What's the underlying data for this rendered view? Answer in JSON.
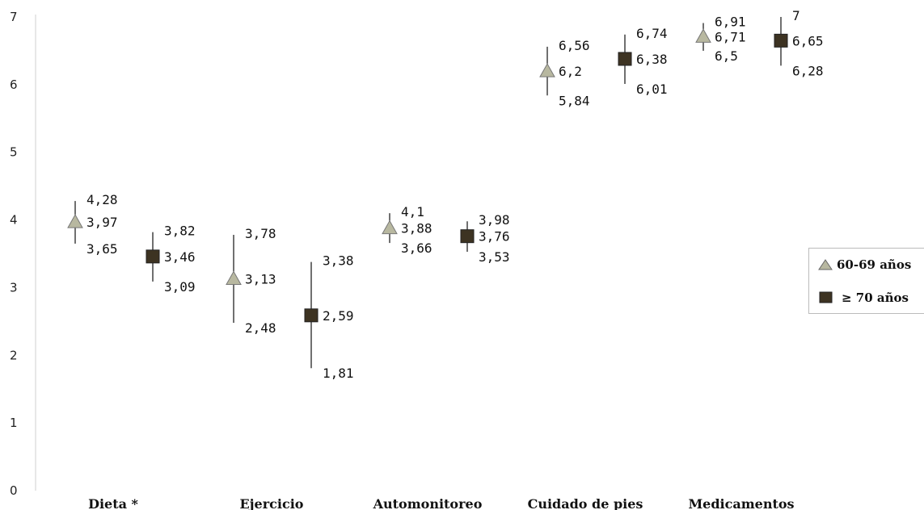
{
  "chart_data": {
    "type": "scatter",
    "categories": [
      "Dieta  *",
      "Ejercicio",
      "Automonitoreo",
      "Cuidado de pies",
      "Medicamentos"
    ],
    "ylim": [
      0,
      7
    ],
    "yticks": [
      "0",
      "1",
      "2",
      "3",
      "4",
      "5",
      "6",
      "7"
    ],
    "grid": false,
    "legend_position": "right",
    "series": [
      {
        "name": "60-69 años",
        "marker": "triangle",
        "color": "#b8b8a0",
        "mean": [
          3.97,
          3.13,
          3.88,
          6.2,
          6.71
        ],
        "upper": [
          4.28,
          3.78,
          4.1,
          6.56,
          6.91
        ],
        "lower": [
          3.65,
          2.48,
          3.66,
          5.84,
          6.5
        ],
        "mean_labels": [
          "3,97",
          "3,13",
          "3,88",
          "6,2",
          "6,71"
        ],
        "upper_labels": [
          "4,28",
          "3,78",
          "4,1",
          "6,56",
          "6,91"
        ],
        "lower_labels": [
          "3,65",
          "2,48",
          "3,66",
          "5,84",
          "6,5"
        ]
      },
      {
        "name": "≥ 70 años",
        "marker": "square",
        "color": "#3d3322",
        "mean": [
          3.46,
          2.59,
          3.76,
          6.38,
          6.65
        ],
        "upper": [
          3.82,
          3.38,
          3.98,
          6.74,
          7
        ],
        "lower": [
          3.09,
          1.81,
          3.53,
          6.01,
          6.28
        ],
        "mean_labels": [
          "3,46",
          "2,59",
          "3,76",
          "6,38",
          "6,65"
        ],
        "upper_labels": [
          "3,82",
          "3,38",
          "3,98",
          "6,74",
          "7"
        ],
        "lower_labels": [
          "3,09",
          "1,81",
          "3,53",
          "6,01",
          "6,28"
        ]
      }
    ]
  }
}
